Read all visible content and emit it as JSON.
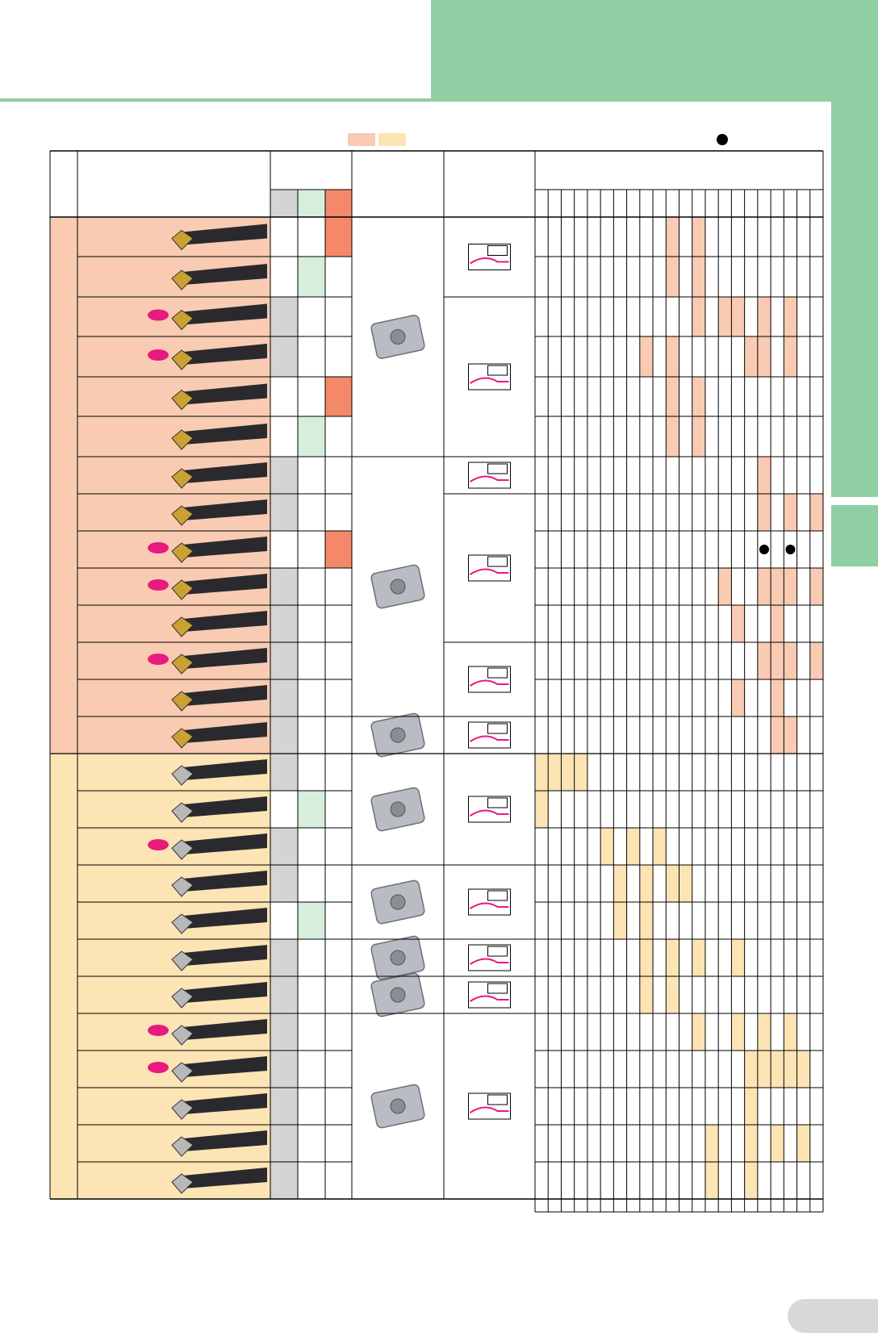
{
  "colors": {
    "header_green": "#90cea3",
    "group_pink": "#f9cbb2",
    "group_yellow": "#fde4b5",
    "grade_gray": "#d4d4d4",
    "grade_green": "#d6eedb",
    "grade_orange": "#f4896a",
    "new_badge": "#e8197f",
    "line": "#000000"
  },
  "legend": {
    "swatches": [
      "group_pink",
      "group_yellow"
    ],
    "marker": "filled-circle"
  },
  "range_columns": 22,
  "groups": [
    {
      "color": "group_pink",
      "rows": [
        {
          "new": false,
          "grade": 2,
          "cells": [
            10,
            12
          ]
        },
        {
          "new": false,
          "grade": 1,
          "cells": [
            10,
            12
          ]
        },
        {
          "new": true,
          "grade": 0,
          "cells": [
            12,
            14,
            15,
            17,
            19
          ]
        },
        {
          "new": true,
          "grade": 0,
          "cells": [
            8,
            10,
            16,
            17,
            19
          ]
        },
        {
          "new": false,
          "grade": 2,
          "cells": [
            10,
            12
          ]
        },
        {
          "new": false,
          "grade": 1,
          "cells": [
            10,
            12
          ]
        },
        {
          "new": false,
          "grade": 0,
          "cells": [
            17
          ]
        },
        {
          "new": false,
          "grade": 0,
          "cells": [
            17,
            19,
            21
          ]
        },
        {
          "new": true,
          "grade": 2,
          "cells": [],
          "dots": [
            17,
            19
          ]
        },
        {
          "new": true,
          "grade": 0,
          "cells": [
            14,
            17,
            18,
            19,
            21
          ]
        },
        {
          "new": false,
          "grade": 0,
          "cells": [
            15,
            18
          ]
        },
        {
          "new": true,
          "grade": 0,
          "cells": [
            17,
            18,
            19,
            21
          ]
        },
        {
          "new": false,
          "grade": 0,
          "cells": [
            15,
            18
          ]
        },
        {
          "new": false,
          "grade": 0,
          "cells": [
            18,
            19
          ]
        }
      ]
    },
    {
      "color": "group_yellow",
      "rows": [
        {
          "new": false,
          "grade": 0,
          "cells": [
            0,
            1,
            2,
            3
          ]
        },
        {
          "new": false,
          "grade": 1,
          "cells": [
            0
          ]
        },
        {
          "new": true,
          "grade": 0,
          "cells": [
            5,
            7,
            9
          ]
        },
        {
          "new": false,
          "grade": 0,
          "cells": [
            6,
            8,
            10,
            11
          ]
        },
        {
          "new": false,
          "grade": 1,
          "cells": [
            6,
            8
          ]
        },
        {
          "new": false,
          "grade": 0,
          "cells": [
            8,
            10,
            12,
            15
          ]
        },
        {
          "new": false,
          "grade": 0,
          "cells": [
            8,
            10
          ]
        },
        {
          "new": true,
          "grade": 0,
          "cells": [
            12,
            15,
            17,
            19
          ]
        },
        {
          "new": true,
          "grade": 0,
          "cells": [
            16,
            17,
            18,
            19,
            20
          ]
        },
        {
          "new": false,
          "grade": 0,
          "cells": [
            16
          ]
        },
        {
          "new": false,
          "grade": 0,
          "cells": [
            13,
            16,
            18,
            20
          ]
        },
        {
          "new": false,
          "grade": 0,
          "cells": [
            13,
            16
          ]
        }
      ]
    }
  ],
  "insert_shapes": [
    {
      "name": "vcmt-insert-image",
      "rows": [
        0,
        5
      ]
    },
    {
      "name": "dcmt-insert-image",
      "rows": [
        6,
        12
      ]
    },
    {
      "name": "trigon-insert-image",
      "rows": [
        13,
        13
      ]
    },
    {
      "name": "wcmt-insert-image",
      "rows": [
        14,
        16
      ]
    },
    {
      "name": "ccmt-insert-image",
      "rows": [
        17,
        18
      ]
    },
    {
      "name": "sc-insert-image",
      "rows": [
        19,
        19
      ]
    },
    {
      "name": "sq-insert-image",
      "rows": [
        20,
        20
      ]
    },
    {
      "name": "cnmg-insert-image",
      "rows": [
        21,
        25
      ]
    }
  ],
  "application_diagrams": [
    {
      "name": "profiling-diagram-a",
      "rows": [
        0,
        1
      ]
    },
    {
      "name": "profiling-diagram-b",
      "rows": [
        2,
        5
      ]
    },
    {
      "name": "boring-diagram-c",
      "rows": [
        6,
        6
      ]
    },
    {
      "name": "boring-diagram-d",
      "rows": [
        7,
        10
      ]
    },
    {
      "name": "boring-diagram-e",
      "rows": [
        11,
        12
      ]
    },
    {
      "name": "boring-diagram-f",
      "rows": [
        13,
        13
      ]
    },
    {
      "name": "small-bore-diagram",
      "rows": [
        14,
        16
      ]
    },
    {
      "name": "bore-diagram-g",
      "rows": [
        17,
        18
      ]
    },
    {
      "name": "bore-diagram-h",
      "rows": [
        19,
        19
      ]
    },
    {
      "name": "bore-diagram-i",
      "rows": [
        20,
        20
      ]
    },
    {
      "name": "bore-diagram-j",
      "rows": [
        21,
        25
      ]
    }
  ]
}
